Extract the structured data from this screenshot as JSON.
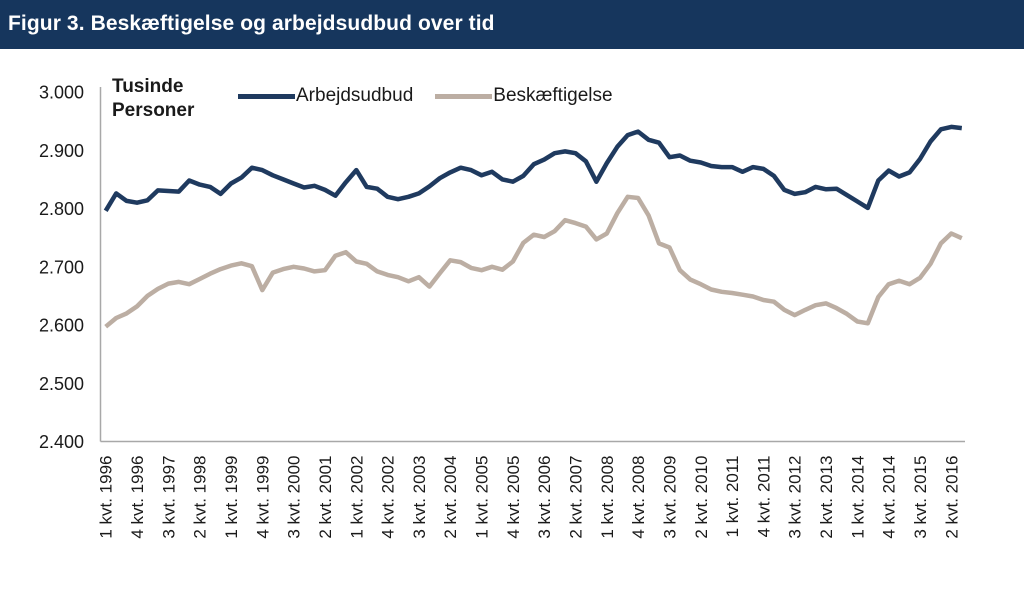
{
  "header": {
    "title": "Figur 3. Beskæftigelse og arbejdsudbud over tid"
  },
  "colors": {
    "header_bg": "#16365D",
    "axis_line": "#A8A8A8",
    "text": "#1A1A1A",
    "arbejdsudbud_line": "#1F3A5F",
    "beskaeftigelse_line": "#BCAEA3"
  },
  "chart_data": {
    "type": "line",
    "unit_label": "Tusinde Personer",
    "legend_position": "top",
    "grid": false,
    "y_axis": {
      "min": 2400,
      "max": 3000,
      "tick_values": [
        2400,
        2500,
        2600,
        2700,
        2800,
        2900,
        3000
      ],
      "tick_labels": [
        "2.400",
        "2.500",
        "2.600",
        "2.700",
        "2.800",
        "2.900",
        "3.000"
      ]
    },
    "x_axis": {
      "unit": "quarter",
      "start": "1 kvt. 1996",
      "end": "3 kvt. 2016",
      "label_every_n_quarters": 3,
      "tick_labels": [
        "1 kvt. 1996",
        "4 kvt. 1996",
        "3 kvt. 1997",
        "2 kvt. 1998",
        "1 kvt. 1999",
        "4 kvt. 1999",
        "3 kvt. 2000",
        "2 kvt. 2001",
        "1 kvt. 2002",
        "4 kvt. 2002",
        "3 kvt. 2003",
        "2 kvt. 2004",
        "1 kvt. 2005",
        "4 kvt. 2005",
        "3 kvt. 2006",
        "2 kvt. 2007",
        "1 kvt. 2008",
        "4 kvt. 2008",
        "3 kvt. 2009",
        "2 kvt. 2010",
        "1 kvt. 2011",
        "4 kvt. 2011",
        "3 kvt. 2012",
        "2 kvt. 2013",
        "1 kvt. 2014",
        "4 kvt. 2014",
        "3 kvt. 2015",
        "2 kvt. 2016"
      ]
    },
    "series": [
      {
        "name": "Arbejdsudbud",
        "color": "#1F3A5F",
        "values": [
          2796,
          2826,
          2813,
          2810,
          2814,
          2831,
          2830,
          2829,
          2848,
          2841,
          2837,
          2825,
          2843,
          2853,
          2870,
          2866,
          2857,
          2850,
          2843,
          2836,
          2839,
          2832,
          2822,
          2845,
          2866,
          2837,
          2834,
          2820,
          2816,
          2820,
          2826,
          2838,
          2852,
          2862,
          2870,
          2866,
          2857,
          2863,
          2850,
          2846,
          2856,
          2876,
          2884,
          2895,
          2898,
          2895,
          2881,
          2846,
          2878,
          2906,
          2926,
          2932,
          2918,
          2913,
          2888,
          2891,
          2882,
          2879,
          2873,
          2871,
          2871,
          2863,
          2871,
          2868,
          2856,
          2832,
          2825,
          2828,
          2837,
          2833,
          2834,
          2823,
          2812,
          2801,
          2848,
          2865,
          2855,
          2862,
          2885,
          2915,
          2936,
          2940,
          2938
        ]
      },
      {
        "name": "Beskæftigelse",
        "color": "#BCAEA3",
        "values": [
          2597,
          2612,
          2620,
          2632,
          2650,
          2662,
          2671,
          2674,
          2670,
          2679,
          2688,
          2696,
          2702,
          2706,
          2701,
          2660,
          2690,
          2696,
          2700,
          2697,
          2692,
          2694,
          2719,
          2725,
          2709,
          2705,
          2692,
          2686,
          2682,
          2675,
          2682,
          2666,
          2689,
          2711,
          2708,
          2698,
          2694,
          2700,
          2695,
          2709,
          2741,
          2755,
          2751,
          2761,
          2780,
          2775,
          2769,
          2747,
          2757,
          2792,
          2820,
          2818,
          2788,
          2740,
          2733,
          2694,
          2678,
          2670,
          2661,
          2657,
          2655,
          2652,
          2649,
          2643,
          2640,
          2626,
          2617,
          2626,
          2634,
          2637,
          2629,
          2619,
          2606,
          2603,
          2648,
          2670,
          2676,
          2670,
          2681,
          2705,
          2740,
          2757,
          2749
        ]
      }
    ]
  }
}
